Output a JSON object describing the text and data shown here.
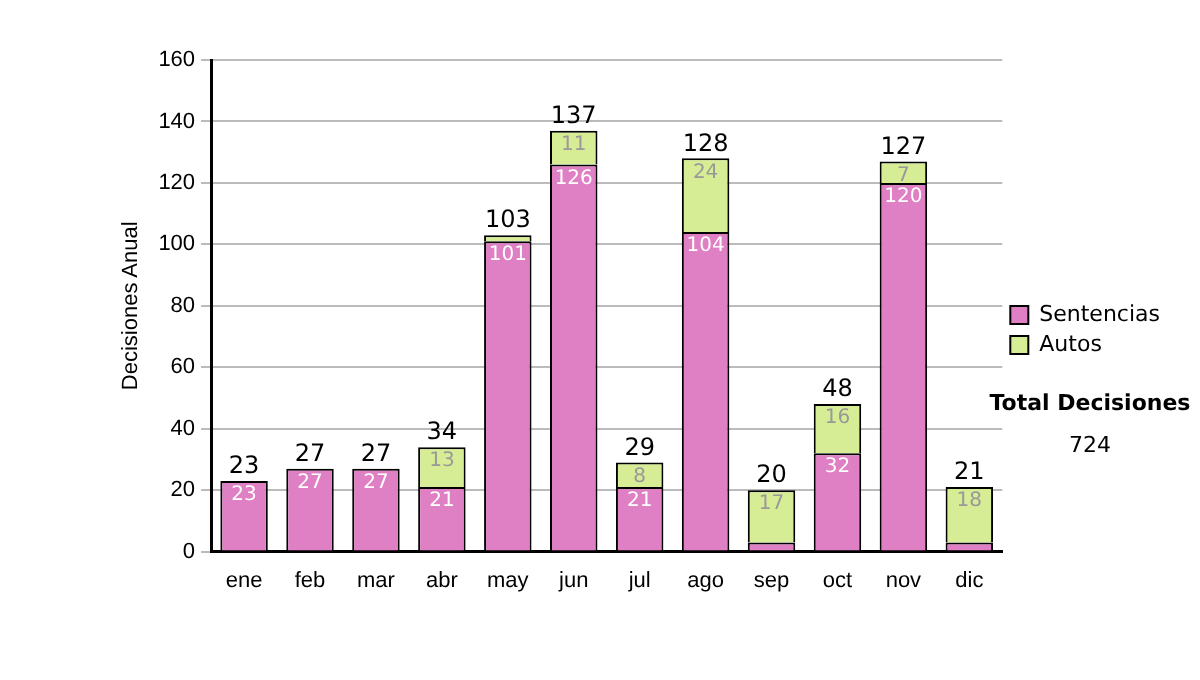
{
  "chart_data": {
    "type": "bar",
    "stacked": true,
    "ylabel": "Decisiones Anual",
    "categories": [
      "ene",
      "feb",
      "mar",
      "abr",
      "may",
      "jun",
      "jul",
      "ago",
      "sep",
      "oct",
      "nov",
      "dic"
    ],
    "series": [
      {
        "name": "Sentencias",
        "color": "#df7fc4",
        "values": [
          23,
          27,
          27,
          21,
          101,
          126,
          21,
          104,
          3,
          32,
          120,
          3
        ],
        "value_labels": [
          "23",
          "27",
          "27",
          "21",
          "101",
          "126",
          "21",
          "104",
          null,
          "32",
          "120",
          null
        ]
      },
      {
        "name": "Autos",
        "color": "#d6ec95",
        "values": [
          null,
          null,
          null,
          13,
          2,
          11,
          8,
          24,
          17,
          16,
          7,
          18
        ],
        "value_labels": [
          null,
          null,
          null,
          "13",
          null,
          "11",
          "8",
          "24",
          "17",
          "16",
          "7",
          "18"
        ]
      }
    ],
    "totals": [
      "23",
      "27",
      "27",
      "34",
      "103",
      "137",
      "29",
      "128",
      "20",
      "48",
      "127",
      "21"
    ],
    "ylim": [
      0,
      160
    ],
    "yticks": [
      0,
      20,
      40,
      60,
      80,
      100,
      120,
      140,
      160
    ],
    "grid": "y",
    "legend": "right",
    "annotations": [
      "Total Decisiones",
      "724"
    ]
  }
}
